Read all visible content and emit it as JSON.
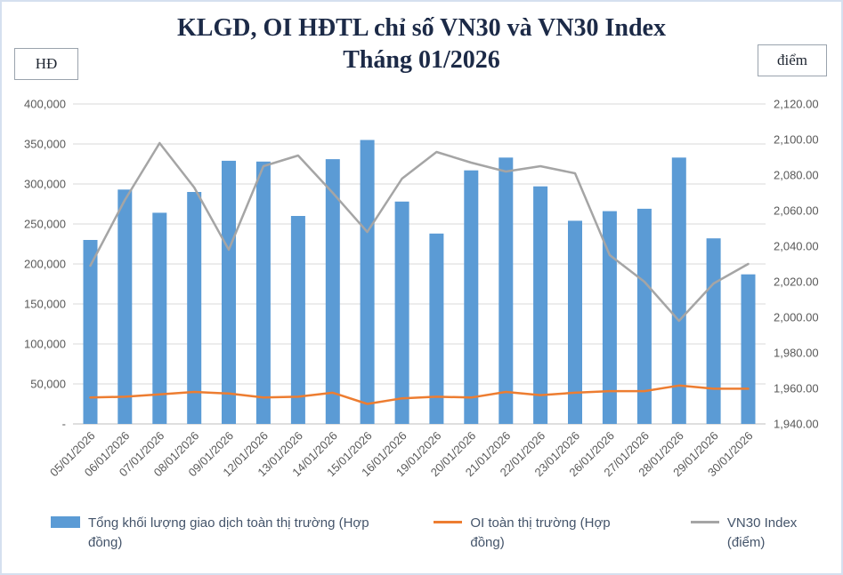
{
  "title": {
    "line1": "KLGD, OI HĐTL chỉ số VN30 và VN30 Index",
    "line2": "Tháng 01/2026"
  },
  "axis_units": {
    "left": "HĐ",
    "right": "điểm"
  },
  "colors": {
    "bar": "#5B9BD5",
    "oi_line": "#ED7D31",
    "vn30_line": "#A5A5A5",
    "title_text": "#1c2a47",
    "legend_text": "#44546A",
    "axis_text": "#595959",
    "gridline": "#D9D9D9",
    "axis_line": "#BFBFBF"
  },
  "chart_data": {
    "type": "combo",
    "title": "KLGD, OI HĐTL chỉ số VN30 và VN30 Index Tháng 01/2026",
    "grid": "horizontal",
    "legend_position": "bottom",
    "categories": [
      "05/01/2026",
      "06/01/2026",
      "07/01/2026",
      "08/01/2026",
      "09/01/2026",
      "12/01/2026",
      "13/01/2026",
      "14/01/2026",
      "15/01/2026",
      "16/01/2026",
      "19/01/2026",
      "20/01/2026",
      "21/01/2026",
      "22/01/2026",
      "23/01/2026",
      "26/01/2026",
      "27/01/2026",
      "28/01/2026",
      "29/01/2026",
      "30/01/2026"
    ],
    "series": [
      {
        "name": "Tổng khối lượng giao dịch toàn thị trường (Hợp đồng)",
        "type": "bar",
        "axis": "left",
        "color": "#5B9BD5",
        "values": [
          230000,
          293000,
          264000,
          290000,
          329000,
          328000,
          260000,
          331000,
          355000,
          278000,
          238000,
          317000,
          333000,
          297000,
          254000,
          266000,
          269000,
          333000,
          232000,
          187000
        ]
      },
      {
        "name": "OI toàn thị trường (Hợp đồng)",
        "type": "line",
        "axis": "left",
        "color": "#ED7D31",
        "values": [
          33000,
          34000,
          37000,
          40000,
          38000,
          33000,
          34000,
          39000,
          25000,
          32000,
          34000,
          33000,
          40000,
          36000,
          39000,
          41000,
          41000,
          48000,
          44000,
          44000
        ]
      },
      {
        "name": "VN30 Index (điểm)",
        "type": "line",
        "axis": "right",
        "color": "#A5A5A5",
        "values": [
          2029,
          2066,
          2098,
          2073,
          2038,
          2085,
          2091,
          2070,
          2048,
          2078,
          2093,
          2087,
          2082,
          2085,
          2081,
          2035,
          2020,
          1998,
          2019,
          2030
        ]
      }
    ],
    "left_axis": {
      "unit": "HĐ",
      "min": 0,
      "max": 400000,
      "step": 50000,
      "tick_labels": [
        "400,000",
        "350,000",
        "300,000",
        "250,000",
        "200,000",
        "150,000",
        "100,000",
        "50,000",
        "-"
      ]
    },
    "right_axis": {
      "unit": "điểm",
      "min": 1940,
      "max": 2120,
      "step": 20,
      "tick_labels": [
        "2,120.00",
        "2,100.00",
        "2,080.00",
        "2,060.00",
        "2,040.00",
        "2,020.00",
        "2,000.00",
        "1,980.00",
        "1,960.00",
        "1,940.00"
      ]
    }
  }
}
